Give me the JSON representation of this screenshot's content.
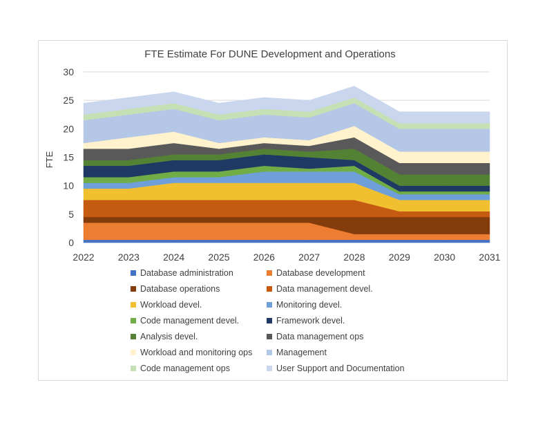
{
  "chart_data": {
    "type": "area",
    "stacked": true,
    "title": "FTE Estimate For DUNE Development and Operations",
    "xlabel": "",
    "ylabel": "FTE",
    "ylim": [
      0,
      30
    ],
    "yticks": [
      0,
      5,
      10,
      15,
      20,
      25,
      30
    ],
    "grid": true,
    "legend": "bottom",
    "x": [
      "2022",
      "2023",
      "2024",
      "2025",
      "2026",
      "2027",
      "2028",
      "2029",
      "2030",
      "2031"
    ],
    "series": [
      {
        "name": "Database administration",
        "color": "#4472c4",
        "values": [
          0.5,
          0.5,
          0.5,
          0.5,
          0.5,
          0.5,
          0.5,
          0.5,
          0.5,
          0.5
        ]
      },
      {
        "name": "Database development",
        "color": "#ed7d31",
        "values": [
          3,
          3,
          3,
          3,
          3,
          3,
          1,
          1,
          1,
          1
        ]
      },
      {
        "name": "Database operations",
        "color": "#843c0c",
        "values": [
          1,
          1,
          1,
          1,
          1,
          1,
          3,
          3,
          3,
          3
        ]
      },
      {
        "name": "Data management devel.",
        "color": "#c55a11",
        "values": [
          3,
          3,
          3,
          3,
          3,
          3,
          3,
          1,
          1,
          1
        ]
      },
      {
        "name": "Workload devel.",
        "color": "#f0c030",
        "values": [
          2,
          2,
          3,
          3,
          3,
          3,
          3,
          2,
          2,
          2
        ]
      },
      {
        "name": "Monitoring devel.",
        "color": "#6f9fd8",
        "values": [
          1,
          1,
          1,
          1,
          2,
          2,
          2,
          1,
          1,
          1
        ]
      },
      {
        "name": "Code management devel.",
        "color": "#70ad47",
        "values": [
          1,
          1,
          1,
          1,
          1,
          0.5,
          1,
          0.5,
          0.5,
          0.5
        ]
      },
      {
        "name": "Framework devel.",
        "color": "#203864",
        "values": [
          2,
          2,
          2,
          2,
          2,
          2,
          1,
          1,
          1,
          1
        ]
      },
      {
        "name": "Analysis devel.",
        "color": "#548235",
        "values": [
          1,
          1,
          1,
          1,
          1,
          1,
          2,
          2,
          2,
          2
        ]
      },
      {
        "name": "Data management ops",
        "color": "#595959",
        "values": [
          2,
          2,
          2,
          1,
          1,
          1,
          2,
          2,
          2,
          2
        ]
      },
      {
        "name": "Workload and monitoring ops",
        "color": "#fff2cc",
        "values": [
          1,
          2,
          2,
          1,
          1,
          1,
          2,
          2,
          2,
          2
        ]
      },
      {
        "name": "Management",
        "color": "#b4c7e7",
        "values": [
          4,
          4,
          4,
          4,
          4,
          4,
          4,
          4,
          4,
          4
        ]
      },
      {
        "name": "Code management ops",
        "color": "#c5e0b4",
        "values": [
          1,
          1,
          1,
          1,
          1,
          1,
          1,
          1,
          1,
          1
        ]
      },
      {
        "name": "User Support and Documentation",
        "color": "#c9d6ee",
        "values": [
          2,
          2,
          2,
          2,
          2,
          2,
          2,
          2,
          2,
          2
        ]
      }
    ]
  }
}
